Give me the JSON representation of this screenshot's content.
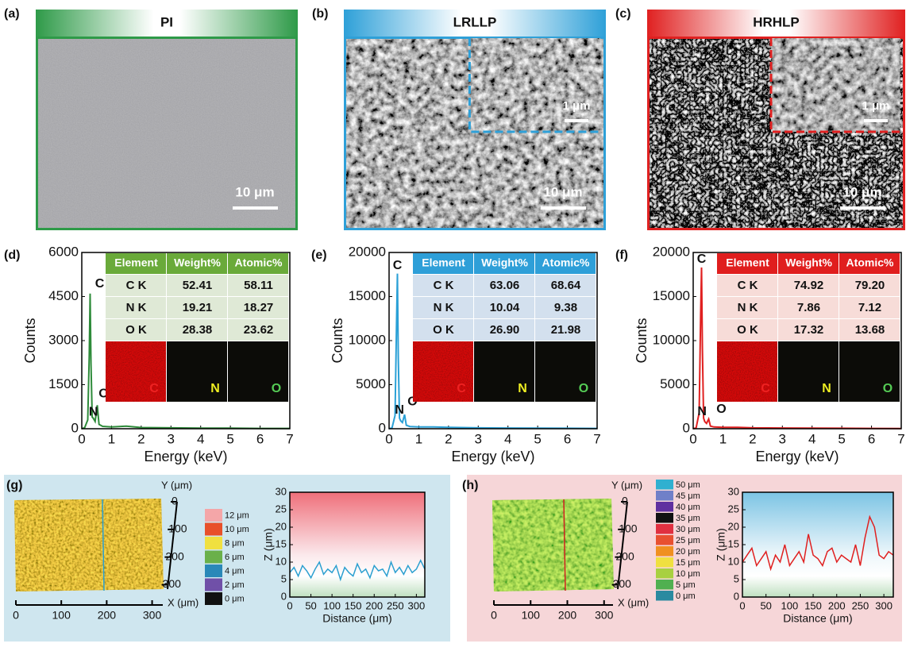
{
  "sem": [
    {
      "label": "(a)",
      "title": "PI",
      "scale": "10 μm",
      "color": "#2e9a48"
    },
    {
      "label": "(b)",
      "title": "LRLLP",
      "scale": "10 μm",
      "inset_scale": "1 μm",
      "color": "#2ea0d8"
    },
    {
      "label": "(c)",
      "title": "HRHLP",
      "scale": "10 μm",
      "inset_scale": "1 μm",
      "color": "#e02020"
    }
  ],
  "eds": [
    {
      "label": "(d)",
      "type": "line",
      "color": "#2e8b3a",
      "header_color": "#6aaa3a",
      "row_color": "#dfe9d6",
      "xlabel": "Energy (keV)",
      "ylabel": "Counts",
      "xlim": [
        0,
        7
      ],
      "xticks": [
        0,
        1,
        2,
        3,
        4,
        5,
        6,
        7
      ],
      "ylim": [
        0,
        6000
      ],
      "yticks": [
        0,
        1500,
        3000,
        4500,
        6000
      ],
      "x": [
        0,
        0.1,
        0.2,
        0.25,
        0.28,
        0.31,
        0.35,
        0.39,
        0.45,
        0.52,
        0.58,
        0.7,
        1,
        1.5,
        2,
        3,
        4,
        5,
        6,
        7
      ],
      "values": [
        0,
        40,
        300,
        2500,
        4600,
        2200,
        400,
        350,
        250,
        800,
        150,
        80,
        60,
        90,
        40,
        30,
        20,
        20,
        10,
        10
      ],
      "peak_labels": [
        "C",
        "N",
        "O"
      ],
      "table": {
        "header": [
          "Element",
          "Weight%",
          "Atomic%"
        ],
        "rows": [
          [
            "C K",
            "52.41",
            "58.11"
          ],
          [
            "N K",
            "19.21",
            "18.27"
          ],
          [
            "O K",
            "28.38",
            "23.62"
          ]
        ],
        "maps": [
          "C",
          "N",
          "O"
        ]
      }
    },
    {
      "label": "(e)",
      "type": "line",
      "color": "#2aa0d6",
      "header_color": "#2e9fd8",
      "row_color": "#d3e0ee",
      "xlabel": "Energy (keV)",
      "ylabel": "Counts",
      "xlim": [
        0,
        7
      ],
      "xticks": [
        0,
        1,
        2,
        3,
        4,
        5,
        6,
        7
      ],
      "ylim": [
        0,
        20000
      ],
      "yticks": [
        0,
        5000,
        10000,
        15000,
        20000
      ],
      "x": [
        0,
        0.1,
        0.2,
        0.25,
        0.28,
        0.31,
        0.35,
        0.39,
        0.45,
        0.52,
        0.58,
        0.7,
        1,
        1.5,
        2,
        3,
        4,
        5,
        6,
        7
      ],
      "values": [
        0,
        100,
        1500,
        12000,
        17600,
        8000,
        1200,
        900,
        700,
        1600,
        400,
        250,
        200,
        200,
        150,
        100,
        80,
        60,
        50,
        40
      ],
      "peak_labels": [
        "C",
        "N",
        "O"
      ],
      "table": {
        "header": [
          "Element",
          "Weight%",
          "Atomic%"
        ],
        "rows": [
          [
            "C K",
            "63.06",
            "68.64"
          ],
          [
            "N K",
            "10.04",
            "9.38"
          ],
          [
            "O K",
            "26.90",
            "21.98"
          ]
        ],
        "maps": [
          "C",
          "N",
          "O"
        ]
      }
    },
    {
      "label": "(f)",
      "type": "line",
      "color": "#e02020",
      "header_color": "#e01e1e",
      "row_color": "#f7dcd8",
      "xlabel": "Energy (keV)",
      "ylabel": "Counts",
      "xlim": [
        0,
        7
      ],
      "xticks": [
        0,
        1,
        2,
        3,
        4,
        5,
        6,
        7
      ],
      "ylim": [
        0,
        20000
      ],
      "yticks": [
        0,
        5000,
        10000,
        15000,
        20000
      ],
      "x": [
        0,
        0.1,
        0.2,
        0.25,
        0.28,
        0.31,
        0.35,
        0.39,
        0.45,
        0.52,
        0.58,
        0.7,
        1,
        1.5,
        2,
        3,
        4,
        5,
        6,
        7
      ],
      "values": [
        0,
        100,
        1800,
        13000,
        18300,
        9000,
        1200,
        800,
        600,
        1100,
        300,
        200,
        150,
        150,
        100,
        80,
        60,
        50,
        40,
        30
      ],
      "peak_labels": [
        "C",
        "N",
        "O"
      ],
      "table": {
        "header": [
          "Element",
          "Weight%",
          "Atomic%"
        ],
        "rows": [
          [
            "C K",
            "74.92",
            "79.20"
          ],
          [
            "N K",
            "7.86",
            "7.12"
          ],
          [
            "O K",
            "17.32",
            "13.68"
          ]
        ],
        "maps": [
          "C",
          "N",
          "O"
        ]
      }
    }
  ],
  "profiles": [
    {
      "label": "(g)",
      "type": "line",
      "color": "#2a9fd0",
      "xlabel": "Distance (μm)",
      "ylabel": "Z (μm)",
      "xlim": [
        0,
        320
      ],
      "xticks": [
        0,
        50,
        100,
        150,
        200,
        250,
        300
      ],
      "ylim": [
        0,
        30
      ],
      "yticks": [
        0,
        5,
        10,
        15,
        20,
        25,
        30
      ],
      "x": [
        0,
        10,
        20,
        30,
        40,
        50,
        60,
        70,
        80,
        90,
        100,
        110,
        120,
        130,
        140,
        150,
        160,
        170,
        180,
        190,
        200,
        210,
        220,
        230,
        240,
        250,
        260,
        270,
        280,
        290,
        300,
        310,
        320
      ],
      "values": [
        7,
        8.5,
        6,
        9,
        7.5,
        5.5,
        8,
        10,
        6.5,
        8,
        7,
        9,
        5,
        8.5,
        7,
        6,
        9.5,
        7,
        8,
        5.5,
        9,
        7.5,
        8,
        6,
        10,
        7,
        8.5,
        6.5,
        9,
        7,
        8,
        10.5,
        8
      ],
      "map3d": {
        "ylabel": "Y (μm)",
        "xlabel": "X (μm)",
        "yticks": [
          0,
          100,
          200,
          300
        ],
        "xticks": [
          0,
          100,
          200,
          300
        ],
        "legend": [
          {
            "label": "12 μm",
            "color": "#f4a6a8"
          },
          {
            "label": "10 μm",
            "color": "#e8502a"
          },
          {
            "label": "8 μm",
            "color": "#f0e040"
          },
          {
            "label": "6 μm",
            "color": "#6ab04a"
          },
          {
            "label": "4 μm",
            "color": "#2a88b8"
          },
          {
            "label": "2 μm",
            "color": "#7050a8"
          },
          {
            "label": "0 μm",
            "color": "#111111"
          }
        ]
      }
    },
    {
      "label": "(h)",
      "type": "line",
      "color": "#e02020",
      "xlabel": "Distance (μm)",
      "ylabel": "Z (μm)",
      "xlim": [
        0,
        320
      ],
      "xticks": [
        0,
        50,
        100,
        150,
        200,
        250,
        300
      ],
      "ylim": [
        0,
        30
      ],
      "yticks": [
        0,
        5,
        10,
        15,
        20,
        25,
        30
      ],
      "x": [
        0,
        10,
        20,
        30,
        40,
        50,
        60,
        70,
        80,
        90,
        100,
        110,
        120,
        130,
        140,
        150,
        160,
        170,
        180,
        190,
        200,
        210,
        220,
        230,
        240,
        250,
        260,
        270,
        280,
        290,
        300,
        310,
        320
      ],
      "values": [
        10,
        12,
        14,
        9,
        11,
        13,
        8,
        12,
        10,
        15,
        9,
        11,
        13,
        10,
        18,
        12,
        11,
        9,
        13,
        14,
        10,
        12,
        11,
        10,
        15,
        9,
        17,
        23,
        20,
        12,
        11,
        13,
        12
      ],
      "map3d": {
        "ylabel": "Y (μm)",
        "xlabel": "X (μm)",
        "yticks": [
          0,
          100,
          200,
          300
        ],
        "xticks": [
          0,
          100,
          200,
          300
        ],
        "legend": [
          {
            "label": "50 μm",
            "color": "#30b0d0"
          },
          {
            "label": "45 μm",
            "color": "#7080c8"
          },
          {
            "label": "40 μm",
            "color": "#6030a0"
          },
          {
            "label": "35 μm",
            "color": "#111111"
          },
          {
            "label": "30 μm",
            "color": "#e03040"
          },
          {
            "label": "25 μm",
            "color": "#e85030"
          },
          {
            "label": "20 μm",
            "color": "#f09020"
          },
          {
            "label": "15 μm",
            "color": "#f0e040"
          },
          {
            "label": "10 μm",
            "color": "#a8d040"
          },
          {
            "label": "5 μm",
            "color": "#50b050"
          },
          {
            "label": "0 μm",
            "color": "#2a8aa0"
          }
        ]
      }
    }
  ]
}
